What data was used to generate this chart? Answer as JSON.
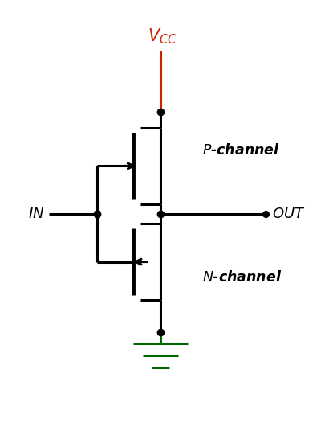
{
  "bg_color": "#ffffff",
  "line_color": "#000000",
  "vcc_color": "#cc2200",
  "gnd_color": "#006600",
  "dot_color": "#000000",
  "lw": 2.2,
  "dot_size": 6,
  "figsize": [
    4.0,
    5.26
  ],
  "dpi": 100,
  "xlim": [
    0,
    10
  ],
  "ylim": [
    0,
    13.15
  ]
}
